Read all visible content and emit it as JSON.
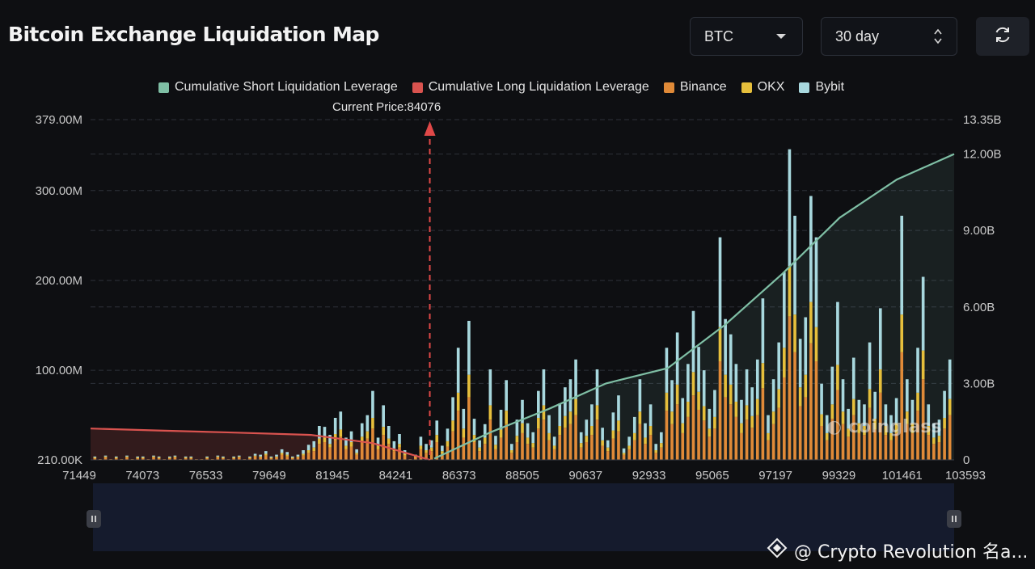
{
  "header": {
    "title": "Bitcoin Exchange Liquidation Map",
    "asset_select": "BTC",
    "range_select": "30 day"
  },
  "icons": {
    "asset_caret": "caret-down-icon",
    "range_spinner": "up-down-spinner-icon",
    "refresh": "refresh-icon",
    "footer_logo": "diamond-logo-icon"
  },
  "annotation": {
    "current_price_label": "Current Price:84076"
  },
  "watermark": {
    "text": "coinglass"
  },
  "footer": {
    "credit": "@ Crypto Revolution 名a..."
  },
  "colors": {
    "short": "#7fbfa5",
    "long": "#d9534f",
    "binance": "#e08a38",
    "okx": "#e6bf3c",
    "bybit": "#a8d8de",
    "navigator": "#151b2d"
  },
  "chart_data": {
    "type": "bar",
    "title": "Bitcoin Exchange Liquidation Map",
    "legend_position": "top",
    "legend": [
      "Cumulative Short Liquidation Leverage",
      "Cumulative Long Liquidation Leverage",
      "Binance",
      "OKX",
      "Bybit"
    ],
    "x_tick_labels": [
      "71449",
      "74073",
      "76533",
      "79649",
      "81945",
      "84241",
      "86373",
      "88505",
      "90637",
      "92933",
      "95065",
      "97197",
      "99329",
      "101461",
      "103593"
    ],
    "x_range": [
      71449,
      103593
    ],
    "current_price": 84076,
    "y_left_ticks": [
      "379.00M",
      "300.00M",
      "200.00M",
      "100.00M",
      "210.00K"
    ],
    "y_left_values": [
      379,
      300,
      200,
      100,
      0.21
    ],
    "y_left_range_millions": [
      0.21,
      379
    ],
    "y_right_ticks": [
      "13.35B",
      "12.00B",
      "9.00B",
      "6.00B",
      "3.00B",
      "0"
    ],
    "y_right_values": [
      13.35,
      12,
      9,
      6,
      3,
      0
    ],
    "y_right_range_billions": [
      0,
      13.35
    ],
    "grid": true,
    "stacked": true,
    "bar_units": "millions",
    "series": [
      {
        "name": "Binance",
        "values": [
          2,
          1,
          3,
          1,
          2,
          1,
          3,
          1,
          2,
          2,
          1,
          3,
          2,
          1,
          2,
          3,
          1,
          2,
          2,
          1,
          1,
          2,
          1,
          3,
          2,
          1,
          2,
          3,
          1,
          2,
          4,
          3,
          5,
          2,
          3,
          6,
          4,
          2,
          3,
          5,
          8,
          10,
          18,
          20,
          14,
          22,
          26,
          12,
          15,
          6,
          20,
          24,
          35,
          12,
          28,
          18,
          10,
          14,
          5,
          1,
          3,
          12,
          8,
          10,
          20,
          7,
          15,
          32,
          55,
          25,
          70,
          20,
          10,
          18,
          45,
          12,
          25,
          40,
          8,
          20,
          30,
          18,
          14,
          35,
          45,
          22,
          12,
          28,
          36,
          40,
          50,
          14,
          20,
          28,
          45,
          16,
          10,
          24,
          32,
          6,
          12,
          22,
          40,
          18,
          28,
          8,
          14,
          55,
          40,
          62,
          30,
          48,
          72,
          56,
          44,
          26,
          35,
          110,
          70,
          62,
          48,
          30,
          45,
          36,
          50,
          80,
          22,
          40,
          58,
          92,
          160,
          120,
          60,
          70,
          130,
          110,
          38,
          22,
          46,
          78,
          40,
          26,
          50,
          30,
          28,
          58,
          34,
          75,
          28,
          22,
          30,
          120,
          40,
          30,
          55,
          90,
          28,
          18,
          20,
          35,
          50
        ],
        "note": "bars in $M, read approximately from the chart"
      },
      {
        "name": "OKX",
        "values": [
          1,
          0,
          1,
          0,
          1,
          0,
          1,
          0,
          1,
          1,
          0,
          1,
          1,
          0,
          1,
          1,
          0,
          1,
          1,
          0,
          0,
          1,
          0,
          1,
          1,
          0,
          1,
          1,
          0,
          1,
          1,
          1,
          2,
          1,
          1,
          2,
          2,
          1,
          1,
          2,
          3,
          4,
          6,
          5,
          4,
          7,
          8,
          4,
          5,
          2,
          6,
          8,
          12,
          4,
          9,
          6,
          3,
          4,
          2,
          0,
          1,
          4,
          3,
          4,
          8,
          3,
          6,
          12,
          20,
          10,
          25,
          8,
          4,
          7,
          16,
          5,
          9,
          15,
          3,
          7,
          11,
          7,
          5,
          12,
          16,
          8,
          4,
          10,
          13,
          14,
          18,
          5,
          7,
          10,
          16,
          6,
          4,
          9,
          12,
          2,
          4,
          8,
          14,
          7,
          10,
          3,
          5,
          20,
          14,
          22,
          11,
          17,
          26,
          20,
          16,
          9,
          13,
          38,
          25,
          22,
          17,
          11,
          16,
          13,
          18,
          28,
          8,
          14,
          21,
          33,
          56,
          42,
          21,
          25,
          46,
          38,
          13,
          8,
          16,
          28,
          14,
          9,
          18,
          11,
          10,
          21,
          12,
          26,
          10,
          8,
          11,
          42,
          14,
          11,
          20,
          32,
          10,
          7,
          7,
          12,
          18
        ]
      },
      {
        "name": "Bybit",
        "values": [
          1,
          0,
          1,
          0,
          1,
          0,
          1,
          0,
          1,
          1,
          0,
          1,
          1,
          0,
          1,
          1,
          0,
          1,
          1,
          0,
          0,
          1,
          0,
          1,
          1,
          0,
          1,
          1,
          0,
          1,
          2,
          2,
          3,
          1,
          2,
          4,
          3,
          1,
          2,
          4,
          6,
          7,
          14,
          12,
          10,
          18,
          20,
          9,
          12,
          4,
          15,
          18,
          30,
          9,
          24,
          14,
          8,
          11,
          4,
          0,
          2,
          10,
          7,
          8,
          16,
          6,
          14,
          26,
          50,
          22,
          60,
          18,
          8,
          15,
          40,
          10,
          22,
          34,
          7,
          18,
          26,
          16,
          12,
          30,
          40,
          20,
          10,
          25,
          32,
          36,
          44,
          12,
          18,
          24,
          40,
          14,
          8,
          20,
          28,
          5,
          10,
          18,
          36,
          16,
          24,
          7,
          12,
          50,
          35,
          58,
          28,
          42,
          68,
          50,
          40,
          22,
          30,
          100,
          62,
          56,
          42,
          26,
          40,
          32,
          44,
          72,
          20,
          36,
          52,
          84,
          130,
          110,
          54,
          64,
          118,
          100,
          34,
          20,
          42,
          70,
          36,
          22,
          46,
          26,
          24,
          52,
          30,
          68,
          24,
          20,
          28,
          110,
          36,
          26,
          50,
          82,
          24,
          16,
          18,
          30,
          44
        ]
      },
      {
        "name": "Cumulative Long Liquidation Leverage",
        "x": [
          71449,
          74073,
          76533,
          79649,
          81945,
          83100,
          84076
        ],
        "values": [
          1.23,
          1.15,
          1.08,
          0.98,
          0.66,
          0.3,
          0.0
        ],
        "note": "billions"
      },
      {
        "name": "Cumulative Short Liquidation Leverage",
        "x": [
          84241,
          86373,
          88505,
          90637,
          92933,
          95065,
          97197,
          99329,
          101461,
          103593
        ],
        "values": [
          0.05,
          1.1,
          2.0,
          3.0,
          3.6,
          5.3,
          7.3,
          9.5,
          11.0,
          12.0
        ],
        "note": "billions"
      }
    ]
  }
}
